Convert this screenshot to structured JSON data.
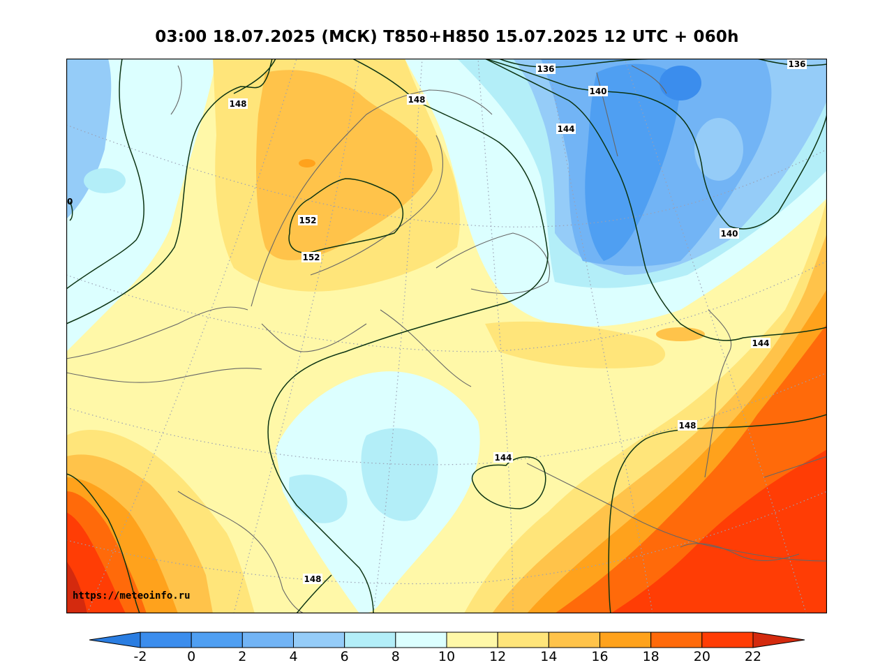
{
  "title": "03:00 18.07.2025 (МСК) T850+H850 15.07.2025 12 UTC + 060h",
  "watermark": "https://meteoinfo.ru",
  "colorbar": {
    "labels": [
      "-2",
      "0",
      "2",
      "4",
      "6",
      "8",
      "10",
      "12",
      "14",
      "16",
      "18",
      "20",
      "22"
    ],
    "under_color": "#2a7de1",
    "over_color": "#d42a0e",
    "colors": [
      "#3b8ded",
      "#4f9ff2",
      "#72b4f5",
      "#95ccf8",
      "#b3eef8",
      "#dcffff",
      "#fff8a8",
      "#ffe57a",
      "#ffc34a",
      "#ffa21c",
      "#ff6a0a",
      "#ff3d05"
    ]
  },
  "isoline_labels": [
    {
      "text": "136"
    },
    {
      "text": "136"
    },
    {
      "text": "140"
    },
    {
      "text": "140"
    },
    {
      "text": "144"
    },
    {
      "text": "144"
    },
    {
      "text": "144"
    },
    {
      "text": "148"
    },
    {
      "text": "148"
    },
    {
      "text": "148"
    },
    {
      "text": "148"
    },
    {
      "text": "152"
    },
    {
      "text": "152"
    },
    {
      "text": "0"
    }
  ]
}
